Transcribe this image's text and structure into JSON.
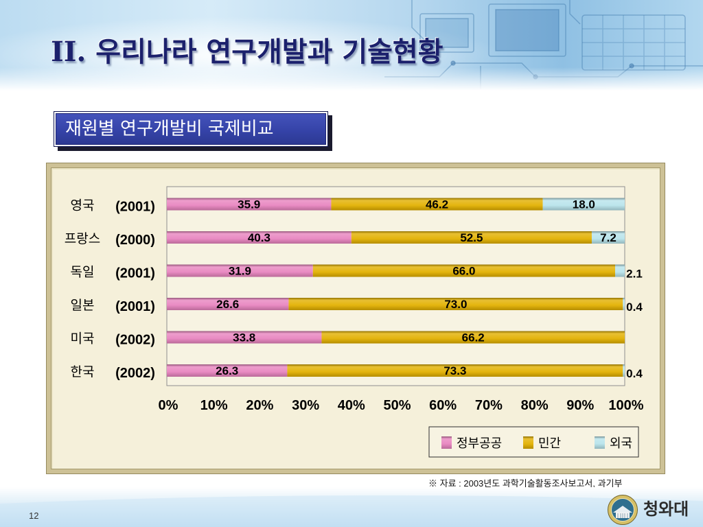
{
  "slide": {
    "title": "II. 우리나라 연구개발과 기술현황",
    "footnote": "※ 자료 : 2003년도 과학기술활동조사보고서, 과기부",
    "page_number": "12",
    "logo_text": "청와대"
  },
  "chart_data": {
    "type": "bar",
    "orientation": "horizontal",
    "stacked": true,
    "title": "재원별 연구개발비 국제비교",
    "categories": [
      "영국",
      "프랑스",
      "독일",
      "일본",
      "미국",
      "한국"
    ],
    "category_years": [
      "(2001)",
      "(2000)",
      "(2001)",
      "(2001)",
      "(2002)",
      "(2002)"
    ],
    "series": [
      {
        "name": "정부공공",
        "color": "#e884bf",
        "values": [
          35.9,
          40.3,
          31.9,
          26.6,
          33.8,
          26.3
        ]
      },
      {
        "name": "민간",
        "color": "#e2b000",
        "values": [
          46.2,
          52.5,
          66.0,
          73.0,
          66.2,
          73.3
        ]
      },
      {
        "name": "외국",
        "color": "#b8e3eb",
        "values": [
          18.0,
          7.2,
          2.1,
          0.4,
          null,
          0.4
        ]
      }
    ],
    "xlim": [
      0,
      100
    ],
    "x_ticks": [
      0,
      10,
      20,
      30,
      40,
      50,
      60,
      70,
      80,
      90,
      100
    ],
    "x_tick_labels": [
      "0%",
      "10%",
      "20%",
      "30%",
      "40%",
      "50%",
      "60%",
      "70%",
      "80%",
      "90%",
      "100%"
    ],
    "grid": false,
    "legend_position": "bottom-right"
  }
}
